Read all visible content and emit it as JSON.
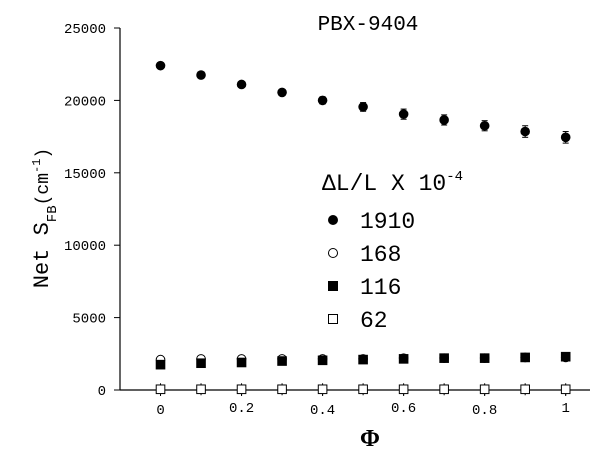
{
  "chart_data": {
    "type": "scatter",
    "title": "PBX-9404",
    "xlabel": "Φ",
    "ylabel": {
      "main": "Net S",
      "sub": "FB",
      "unit_open": "(cm",
      "unit_exp": "-1",
      "unit_close": ")"
    },
    "xlim": [
      -0.1,
      1.06
    ],
    "ylim": [
      0,
      25000
    ],
    "x_ticks": [
      "0",
      "0.2",
      "0.4",
      "0.6",
      "0.8",
      "1"
    ],
    "x_tick_values": [
      0,
      0.2,
      0.4,
      0.6,
      0.8,
      1
    ],
    "y_ticks": [
      "0",
      "5000",
      "10000",
      "15000",
      "20000",
      "25000"
    ],
    "y_tick_values": [
      0,
      5000,
      10000,
      15000,
      20000,
      25000
    ],
    "legend": {
      "title_main": "ΔL/L X 10",
      "title_exp": "-4",
      "placement": "center-right"
    },
    "series": [
      {
        "name": "1910",
        "marker": "filled-circle",
        "x": [
          0,
          0.1,
          0.2,
          0.3,
          0.4,
          0.5,
          0.6,
          0.7,
          0.8,
          0.9,
          1.0
        ],
        "y": [
          22400,
          21750,
          21100,
          20550,
          20000,
          19550,
          19050,
          18650,
          18250,
          17850,
          17450
        ],
        "err": [
          0,
          0,
          0,
          0,
          250,
          300,
          350,
          350,
          350,
          400,
          400
        ]
      },
      {
        "name": "168",
        "marker": "open-circle",
        "x": [
          0,
          0.1,
          0.2,
          0.3,
          0.4,
          0.5,
          0.6,
          0.7,
          0.8,
          0.9,
          1.0
        ],
        "y": [
          2100,
          2150,
          2150,
          2150,
          2150,
          2150,
          2200,
          2200,
          2200,
          2250,
          2250
        ],
        "err": [
          0,
          0,
          0,
          0,
          0,
          0,
          0,
          0,
          0,
          0,
          0
        ]
      },
      {
        "name": "116",
        "marker": "filled-square",
        "x": [
          0,
          0.1,
          0.2,
          0.3,
          0.4,
          0.5,
          0.6,
          0.7,
          0.8,
          0.9,
          1.0
        ],
        "y": [
          1750,
          1850,
          1900,
          2000,
          2050,
          2100,
          2150,
          2200,
          2200,
          2250,
          2300
        ],
        "err": [
          0,
          0,
          0,
          0,
          0,
          0,
          0,
          0,
          0,
          0,
          0
        ]
      },
      {
        "name": "62",
        "marker": "open-square",
        "x": [
          0,
          0.1,
          0.2,
          0.3,
          0.4,
          0.5,
          0.6,
          0.7,
          0.8,
          0.9,
          1.0
        ],
        "y": [
          50,
          50,
          50,
          50,
          50,
          50,
          50,
          50,
          50,
          50,
          50
        ],
        "err": [
          0,
          0,
          0,
          0,
          0,
          0,
          0,
          0,
          0,
          0,
          0
        ]
      }
    ]
  }
}
